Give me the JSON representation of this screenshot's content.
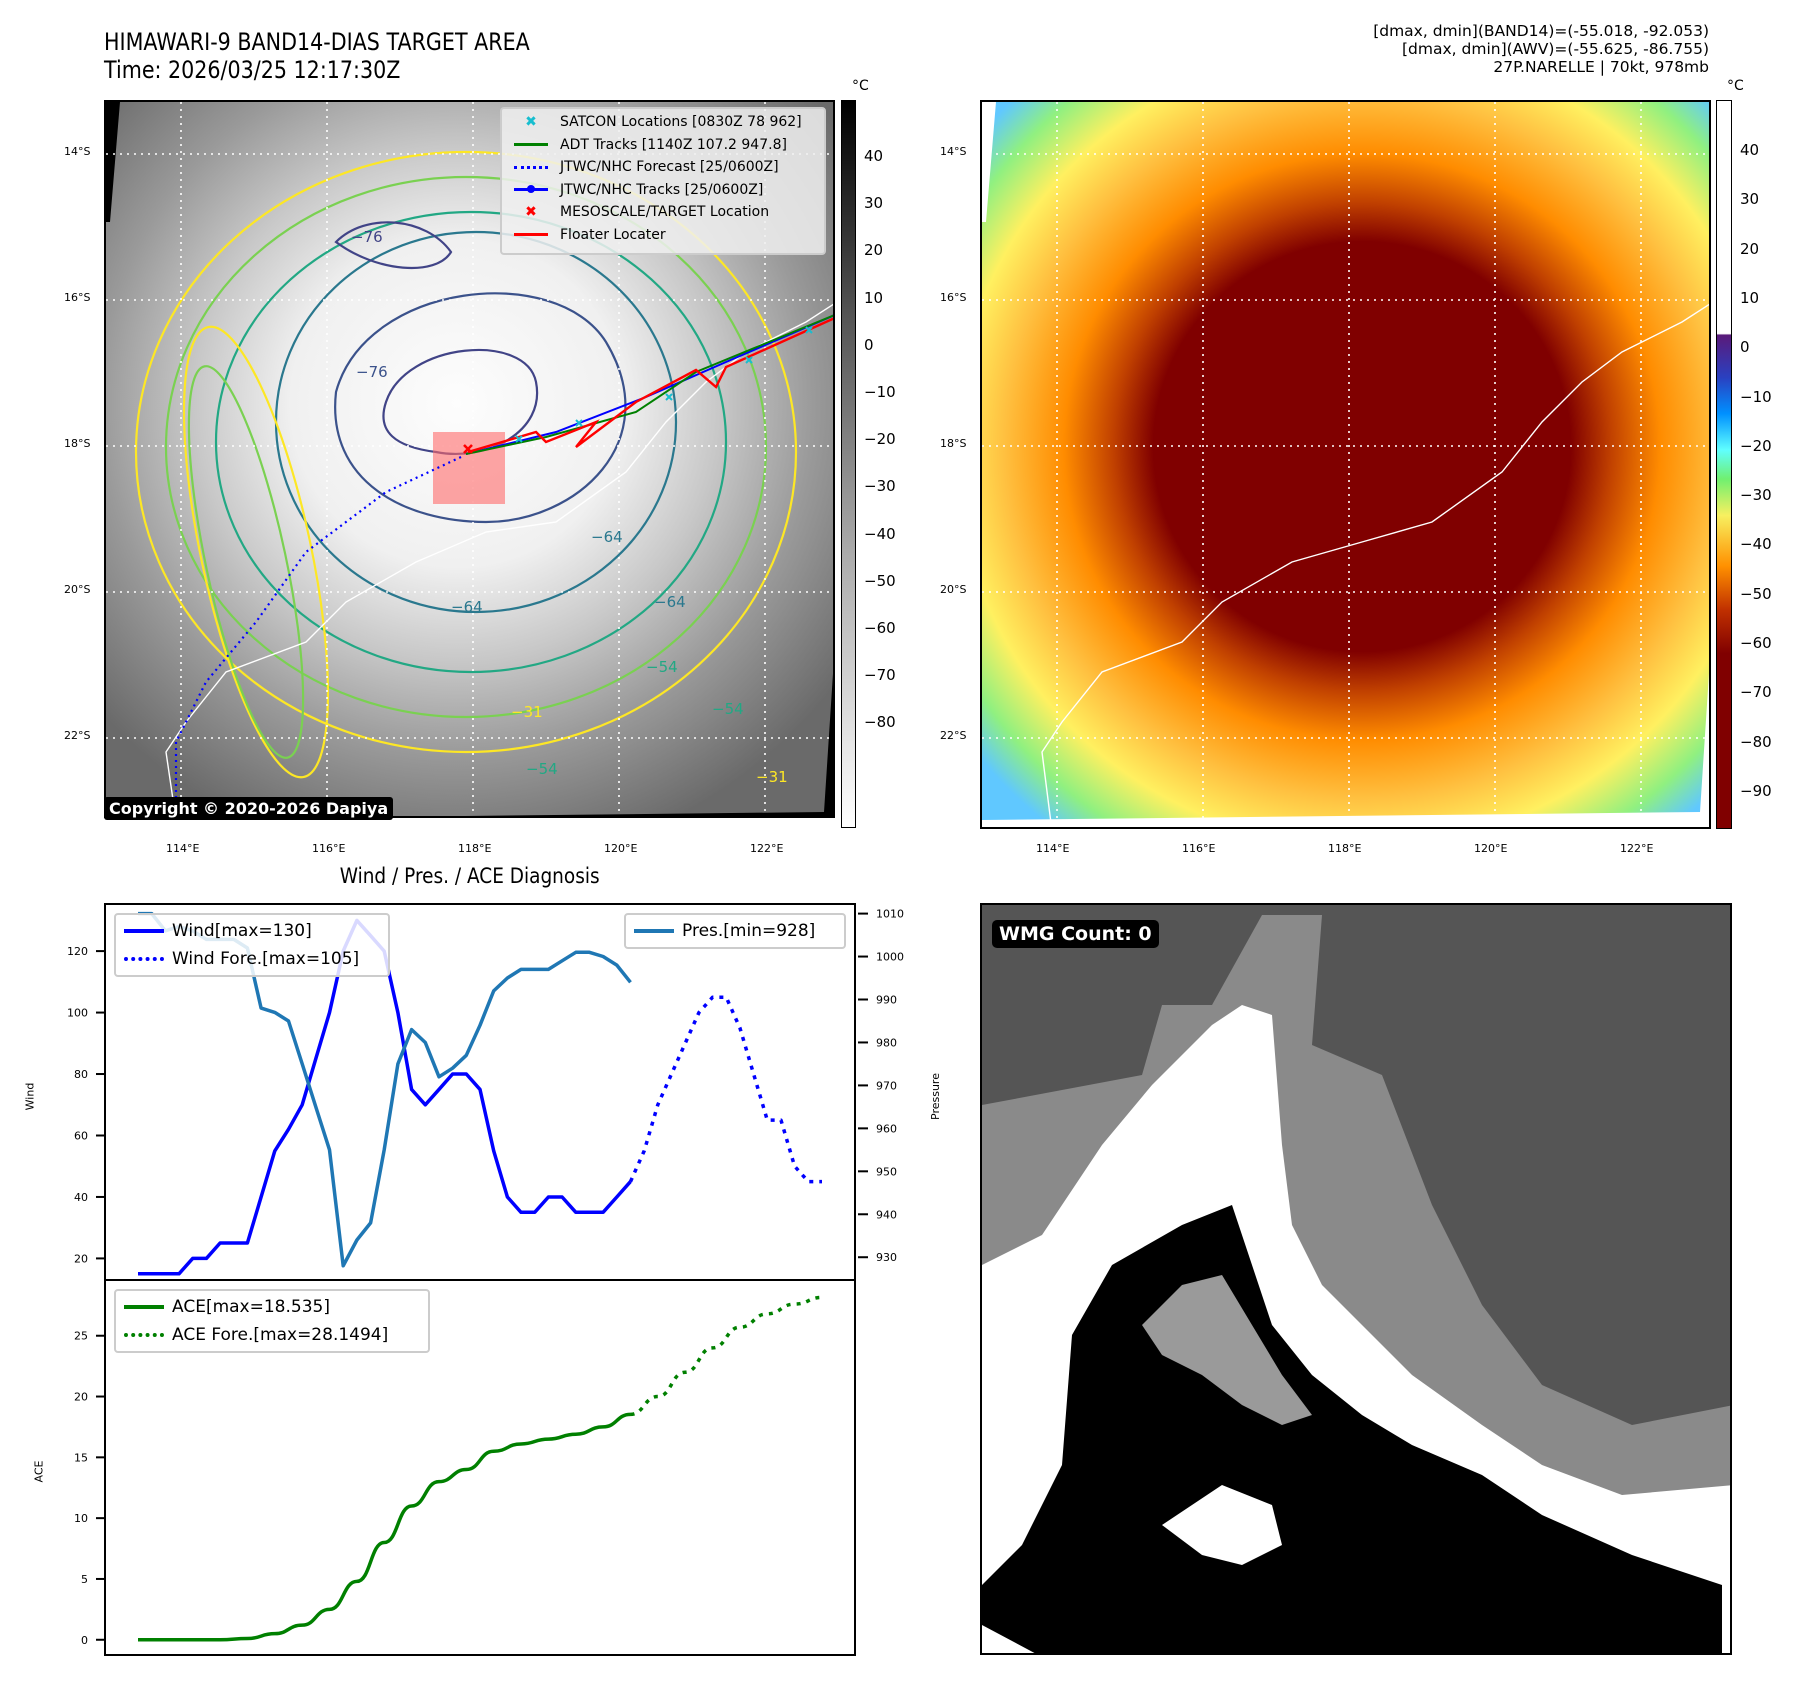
{
  "header": {
    "title": "HIMAWARI-9 BAND14-DIAS TARGET AREA",
    "time": "Time: 2026/03/25 12:17:30Z",
    "stats": [
      "[dmax, dmin](BAND14)=(-55.018, -92.053)",
      "[dmax, dmin](AWV)=(-55.625, -86.755)",
      "27P.NARELLE | 70kt, 978mb"
    ]
  },
  "map_ir": {
    "lat_labels": [
      "14°S",
      "16°S",
      "18°S",
      "20°S",
      "22°S"
    ],
    "lon_labels": [
      "114°E",
      "116°E",
      "118°E",
      "120°E",
      "122°E"
    ],
    "colorbar_unit": "°C",
    "colorbar_ticks": [
      "40",
      "30",
      "20",
      "10",
      "0",
      "−10",
      "−20",
      "−30",
      "−40",
      "−50",
      "−60",
      "−70",
      "−80"
    ],
    "contour_labels": [
      "−76",
      "−76",
      "−64",
      "−64",
      "−64",
      "−54",
      "−54",
      "−54",
      "−31",
      "−31"
    ],
    "legend": [
      {
        "icon": "cyan-x-marker",
        "label": "SATCON Locations [0830Z 78 962]",
        "color": "#17becf"
      },
      {
        "icon": "green-line",
        "label": "ADT Tracks [1140Z 107.2 947.8]",
        "color": "#008000"
      },
      {
        "icon": "blue-dotted-line",
        "label": "JTWC/NHC Forecast [25/0600Z]",
        "color": "#0000ff"
      },
      {
        "icon": "blue-line-dot",
        "label": "JTWC/NHC Tracks [25/0600Z]",
        "color": "#0000ff"
      },
      {
        "icon": "red-x-marker",
        "label": "MESOSCALE/TARGET Location",
        "color": "#ff0000"
      },
      {
        "icon": "red-line",
        "label": "Floater Locater",
        "color": "#ff0000"
      }
    ],
    "copyright": "Copyright © 2020-2026 Dapiya"
  },
  "map_color": {
    "lat_labels": [
      "14°S",
      "16°S",
      "18°S",
      "20°S",
      "22°S"
    ],
    "lon_labels": [
      "114°E",
      "116°E",
      "118°E",
      "120°E",
      "122°E"
    ],
    "colorbar_unit": "°C",
    "colorbar_ticks": [
      "40",
      "30",
      "20",
      "10",
      "0",
      "−10",
      "−20",
      "−30",
      "−40",
      "−50",
      "−60",
      "−70",
      "−80",
      "−90"
    ]
  },
  "wmg": {
    "label": "WMG Count: 0"
  },
  "chart_data": [
    {
      "type": "line",
      "title": "Wind / Pres. / ACE Diagnosis",
      "ylabel": "Wind",
      "ylabel_right": "Pressure",
      "ylim": [
        12,
        135
      ],
      "ylim_right": [
        924,
        1012
      ],
      "yticks": [
        "120",
        "100",
        "80",
        "60",
        "40",
        "20"
      ],
      "yticks_right": [
        "1010",
        "1000",
        "990",
        "980",
        "970",
        "960",
        "950",
        "940",
        "930"
      ],
      "series": [
        {
          "name": "Wind[max=130]",
          "style": "solid",
          "color": "#0000ff",
          "axis": "left",
          "x": [
            0,
            1,
            2,
            3,
            4,
            5,
            6,
            7,
            8,
            9,
            10,
            11,
            12,
            13,
            14,
            15,
            16,
            17,
            18,
            19,
            20,
            21,
            22,
            23,
            24,
            25,
            26,
            27,
            28,
            29,
            30,
            31,
            32,
            33,
            34,
            35,
            36
          ],
          "values": [
            15,
            15,
            15,
            15,
            20,
            20,
            25,
            25,
            25,
            40,
            55,
            62,
            70,
            85,
            100,
            120,
            130,
            125,
            120,
            100,
            75,
            70,
            75,
            80,
            80,
            75,
            55,
            40,
            35,
            35,
            40,
            40,
            35,
            35,
            35,
            40,
            45
          ]
        },
        {
          "name": "Wind Fore.[max=105]",
          "style": "dotted",
          "color": "#0000ff",
          "axis": "left",
          "x": [
            36,
            37,
            38,
            39,
            40,
            41,
            42,
            43,
            44,
            45,
            46,
            47,
            48,
            49,
            50
          ],
          "values": [
            45,
            55,
            70,
            80,
            90,
            100,
            105,
            105,
            95,
            80,
            65,
            65,
            50,
            45,
            45
          ]
        },
        {
          "name": "Pres.[min=928]",
          "style": "solid",
          "color": "#1f77b4",
          "axis": "right",
          "x": [
            0,
            1,
            2,
            3,
            4,
            5,
            6,
            7,
            8,
            9,
            10,
            11,
            12,
            13,
            14,
            15,
            16,
            17,
            18,
            19,
            20,
            21,
            22,
            23,
            24,
            25,
            26,
            27,
            28,
            29,
            30,
            31,
            32,
            33,
            34,
            35,
            36
          ],
          "values": [
            1010,
            1010,
            1006,
            1007,
            1006,
            1004,
            1004,
            1004,
            1002,
            988,
            987,
            985,
            975,
            965,
            955,
            928,
            934,
            938,
            955,
            975,
            983,
            980,
            972,
            974,
            977,
            984,
            992,
            995,
            997,
            997,
            997,
            999,
            1001,
            1001,
            1000,
            998,
            994
          ]
        }
      ],
      "legend": [
        {
          "label": "Wind[max=130]",
          "style": "solid",
          "color": "#0000ff"
        },
        {
          "label": "Wind Fore.[max=105]",
          "style": "dotted",
          "color": "#0000ff"
        },
        {
          "label": "Pres.[min=928]",
          "style": "solid",
          "color": "#1f77b4"
        }
      ]
    },
    {
      "type": "line",
      "ylabel": "ACE",
      "ylim": [
        -1.5,
        29.5
      ],
      "yticks": [
        "25",
        "20",
        "15",
        "10",
        "5",
        "0"
      ],
      "series": [
        {
          "name": "ACE[max=18.535]",
          "style": "solid",
          "color": "#008000",
          "x": [
            0,
            2,
            4,
            6,
            8,
            10,
            12,
            14,
            16,
            18,
            20,
            22,
            24,
            26,
            28,
            30,
            32,
            34,
            36
          ],
          "values": [
            0,
            0,
            0,
            0,
            0.1,
            0.5,
            1.2,
            2.5,
            4.8,
            8,
            11,
            13,
            14,
            15.5,
            16.1,
            16.5,
            16.9,
            17.5,
            18.535
          ]
        },
        {
          "name": "ACE Fore.[max=28.1494]",
          "style": "dotted",
          "color": "#008000",
          "x": [
            36,
            38,
            40,
            42,
            44,
            46,
            48,
            50
          ],
          "values": [
            18.535,
            20,
            22,
            24,
            25.7,
            26.8,
            27.6,
            28.1494
          ]
        }
      ],
      "legend": [
        {
          "label": "ACE[max=18.535]",
          "style": "solid",
          "color": "#008000"
        },
        {
          "label": "ACE Fore.[max=28.1494]",
          "style": "dotted",
          "color": "#008000"
        }
      ]
    }
  ]
}
